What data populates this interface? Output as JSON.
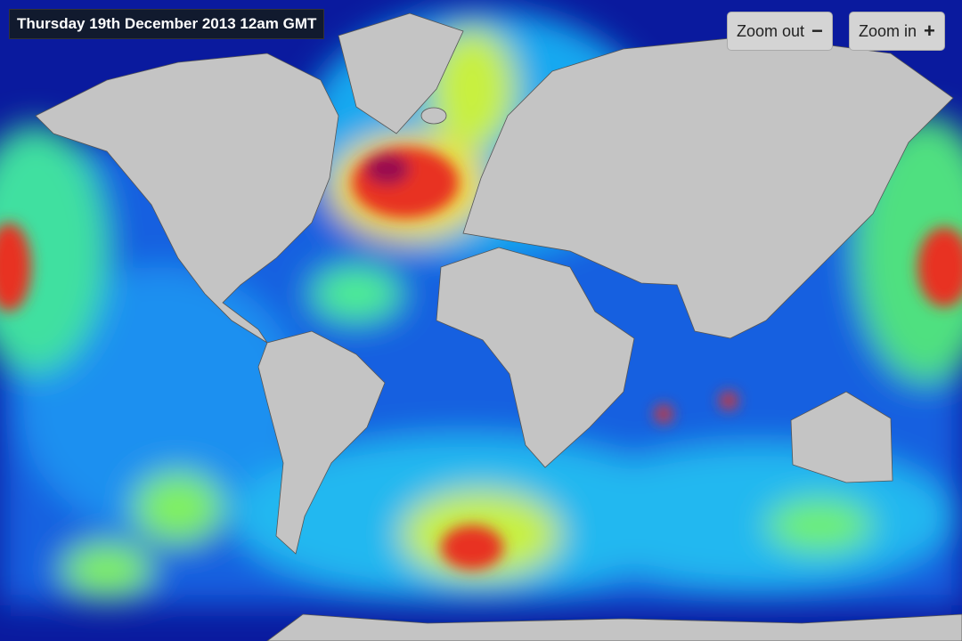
{
  "header": {
    "timestamp": "Thursday 19th December 2013 12am GMT"
  },
  "controls": {
    "zoom_out": {
      "label": "Zoom out",
      "icon": "minus-icon",
      "glyph": "−"
    },
    "zoom_in": {
      "label": "Zoom in",
      "icon": "plus-icon",
      "glyph": "+"
    }
  },
  "colors": {
    "ocean_low": "#0a1a9e",
    "land": "#c4c4c4",
    "wave_high": "#e0201a",
    "wave_peak": "#9a1050"
  }
}
